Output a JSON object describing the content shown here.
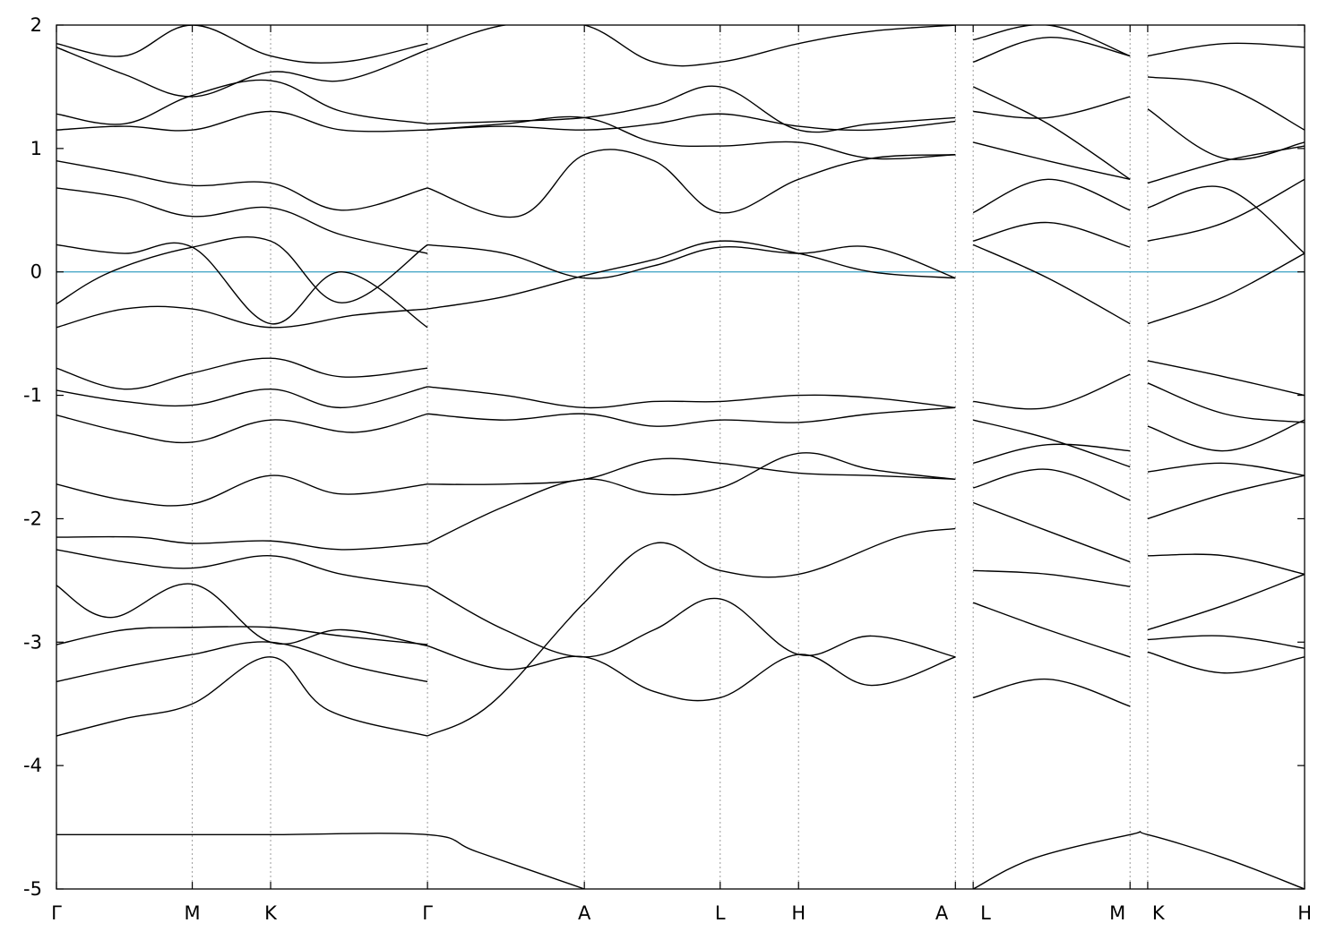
{
  "chart_data": {
    "type": "line",
    "title": "",
    "xlabel": "",
    "ylabel": "",
    "ylim": [
      -5,
      2
    ],
    "yticks": [
      2,
      1,
      0,
      -1,
      -2,
      -3,
      -4,
      -5
    ],
    "ytick_labels": [
      "2",
      "1",
      "0",
      "-1",
      "-2",
      "-3",
      "-4",
      "-5"
    ],
    "fermi_level": 0,
    "fermi_color": "#4aa8c8",
    "band_color": "#000000",
    "grid": "dotted vertical lines at high-symmetry points",
    "high_symmetry_points": [
      {
        "label": "Γ",
        "x": 0.0
      },
      {
        "label": "M",
        "x": 1.0
      },
      {
        "label": "K",
        "x": 1.577
      },
      {
        "label": "Γ",
        "x": 2.732
      },
      {
        "label": "A",
        "x": 3.887
      },
      {
        "label": "L",
        "x": 4.887
      },
      {
        "label": "H",
        "x": 5.464
      },
      {
        "label": "A",
        "x": 6.619
      },
      {
        "label": "L",
        "x": 6.75
      },
      {
        "label": "M",
        "x": 7.905
      },
      {
        "label": "K",
        "x": 8.035
      },
      {
        "label": "H",
        "x": 9.19
      }
    ],
    "segments": [
      {
        "from": "Γ",
        "to": "M",
        "x": [
          0.0,
          1.0
        ]
      },
      {
        "from": "M",
        "to": "K",
        "x": [
          1.0,
          1.577
        ]
      },
      {
        "from": "K",
        "to": "Γ",
        "x": [
          1.577,
          2.732
        ]
      },
      {
        "from": "Γ",
        "to": "A",
        "x": [
          2.732,
          3.887
        ]
      },
      {
        "from": "A",
        "to": "L",
        "x": [
          3.887,
          4.887
        ]
      },
      {
        "from": "L",
        "to": "H",
        "x": [
          4.887,
          5.464
        ]
      },
      {
        "from": "H",
        "to": "A",
        "x": [
          5.464,
          6.619
        ]
      },
      {
        "from": "L",
        "to": "M",
        "x": [
          6.75,
          7.905
        ]
      },
      {
        "from": "K",
        "to": "H",
        "x": [
          8.035,
          9.19
        ]
      }
    ],
    "series": [
      {
        "x": [
          0,
          1,
          1.577,
          2.732,
          3.1,
          3.887
        ],
        "y": [
          -4.56,
          -4.56,
          -4.56,
          -4.56,
          -4.7,
          -5.0
        ]
      },
      {
        "x": [
          6.75,
          7.2,
          7.905,
          8.035,
          8.6,
          9.19
        ],
        "y": [
          -5.0,
          -4.75,
          -4.56,
          -4.56,
          -4.75,
          -5.0
        ]
      },
      {
        "x": [
          0,
          0.5,
          1,
          1.577,
          2.0,
          2.732
        ],
        "y": [
          -3.76,
          -3.62,
          -3.5,
          -3.12,
          -3.55,
          -3.76
        ]
      },
      {
        "x": [
          0,
          0.5,
          1,
          1.577,
          2.2,
          2.732
        ],
        "y": [
          -3.32,
          -3.2,
          -3.1,
          -3.0,
          -3.2,
          -3.32
        ]
      },
      {
        "x": [
          0,
          0.5,
          1,
          1.577,
          2.1,
          2.732
        ],
        "y": [
          -3.02,
          -2.9,
          -2.88,
          -2.88,
          -2.95,
          -3.02
        ]
      },
      {
        "x": [
          0,
          0.4,
          1,
          1.577,
          2.1,
          2.732
        ],
        "y": [
          -2.54,
          -2.8,
          -2.53,
          -3.0,
          -2.9,
          -3.03
        ]
      },
      {
        "x": [
          0,
          0.5,
          1,
          1.577,
          2.1,
          2.732
        ],
        "y": [
          -2.25,
          -2.35,
          -2.4,
          -2.3,
          -2.45,
          -2.55
        ]
      },
      {
        "x": [
          0,
          0.6,
          1,
          1.577,
          2.1,
          2.732
        ],
        "y": [
          -2.15,
          -2.15,
          -2.2,
          -2.18,
          -2.25,
          -2.2
        ]
      },
      {
        "x": [
          0,
          0.5,
          1,
          1.577,
          2.1,
          2.732
        ],
        "y": [
          -1.72,
          -1.85,
          -1.88,
          -1.65,
          -1.8,
          -1.72
        ]
      },
      {
        "x": [
          0,
          0.5,
          1,
          1.577,
          2.2,
          2.732
        ],
        "y": [
          -1.16,
          -1.3,
          -1.38,
          -1.2,
          -1.3,
          -1.15
        ]
      },
      {
        "x": [
          0,
          0.5,
          1,
          1.577,
          2.1,
          2.732
        ],
        "y": [
          -0.96,
          -1.05,
          -1.08,
          -0.95,
          -1.1,
          -0.93
        ]
      },
      {
        "x": [
          0,
          0.5,
          1,
          1.577,
          2.1,
          2.732
        ],
        "y": [
          -0.78,
          -0.95,
          -0.82,
          -0.7,
          -0.85,
          -0.78
        ]
      },
      {
        "x": [
          0,
          0.5,
          1,
          1.577,
          2.2,
          2.732
        ],
        "y": [
          -0.45,
          -0.3,
          -0.3,
          -0.45,
          -0.35,
          -0.3
        ]
      },
      {
        "x": [
          0,
          0.4,
          1,
          1.577,
          2.1,
          2.732
        ],
        "y": [
          -0.26,
          0.0,
          0.2,
          0.25,
          -0.25,
          0.22
        ]
      },
      {
        "x": [
          0,
          0.5,
          1,
          1.577,
          2.1,
          2.732
        ],
        "y": [
          0.22,
          0.15,
          0.2,
          -0.42,
          0.0,
          -0.45
        ]
      },
      {
        "x": [
          0,
          0.5,
          1,
          1.577,
          2.1,
          2.732
        ],
        "y": [
          0.68,
          0.6,
          0.45,
          0.52,
          0.3,
          0.15
        ]
      },
      {
        "x": [
          0,
          0.5,
          1,
          1.577,
          2.1,
          2.732
        ],
        "y": [
          0.9,
          0.8,
          0.7,
          0.72,
          0.5,
          0.68
        ]
      },
      {
        "x": [
          0,
          0.5,
          1,
          1.577,
          2.1,
          2.732
        ],
        "y": [
          1.15,
          1.18,
          1.15,
          1.3,
          1.15,
          1.15
        ]
      },
      {
        "x": [
          0,
          0.5,
          1,
          1.577,
          2.1,
          2.732
        ],
        "y": [
          1.28,
          1.2,
          1.43,
          1.55,
          1.3,
          1.2
        ]
      },
      {
        "x": [
          0,
          0.5,
          1,
          1.577,
          2.1,
          2.732
        ],
        "y": [
          1.82,
          1.6,
          1.42,
          1.62,
          1.55,
          1.8
        ]
      },
      {
        "x": [
          0,
          0.5,
          1,
          1.577,
          2.1,
          2.732
        ],
        "y": [
          1.85,
          1.75,
          2.0,
          1.75,
          1.7,
          1.85
        ]
      },
      {
        "x": [
          2.732,
          3.3,
          3.887,
          4.4,
          4.887,
          5.464,
          6.0,
          6.619
        ],
        "y": [
          -1.72,
          -1.72,
          -1.68,
          -1.52,
          -1.55,
          -1.63,
          -1.65,
          -1.68
        ]
      },
      {
        "x": [
          2.732,
          3.3,
          3.887,
          4.4,
          4.887,
          5.464,
          6.0,
          6.619
        ],
        "y": [
          -2.2,
          -1.9,
          -1.68,
          -1.8,
          -1.75,
          -1.47,
          -1.6,
          -1.68
        ]
      },
      {
        "x": [
          2.732,
          3.3,
          3.887,
          4.4,
          4.887,
          5.464,
          6.0,
          6.619
        ],
        "y": [
          -2.55,
          -2.9,
          -3.12,
          -2.9,
          -2.65,
          -3.1,
          -2.95,
          -3.12
        ]
      },
      {
        "x": [
          2.732,
          3.3,
          3.887,
          4.4,
          4.887,
          5.464,
          6.0,
          6.619
        ],
        "y": [
          -3.03,
          -3.22,
          -3.12,
          -3.4,
          -3.45,
          -3.1,
          -3.35,
          -3.12
        ]
      },
      {
        "x": [
          2.732,
          3.2,
          3.887,
          4.4,
          4.887,
          5.464,
          6.2,
          6.619
        ],
        "y": [
          -3.76,
          -3.5,
          -2.68,
          -2.2,
          -2.42,
          -2.45,
          -2.15,
          -2.08
        ]
      },
      {
        "x": [
          2.732,
          3.3,
          3.887,
          4.4,
          4.887,
          5.464,
          6.0,
          6.619
        ],
        "y": [
          -0.93,
          -1.0,
          -1.1,
          -1.05,
          -1.05,
          -1.0,
          -1.02,
          -1.1
        ]
      },
      {
        "x": [
          2.732,
          3.3,
          3.887,
          4.4,
          4.887,
          5.464,
          6.0,
          6.619
        ],
        "y": [
          -1.15,
          -1.2,
          -1.15,
          -1.25,
          -1.2,
          -1.22,
          -1.15,
          -1.1
        ]
      },
      {
        "x": [
          2.732,
          3.3,
          3.887,
          4.4,
          4.887,
          5.464,
          6.0,
          6.619
        ],
        "y": [
          -0.3,
          -0.2,
          -0.03,
          0.1,
          0.25,
          0.15,
          0.0,
          -0.05
        ]
      },
      {
        "x": [
          2.732,
          3.3,
          3.887,
          4.4,
          4.887,
          5.464,
          6.0,
          6.619
        ],
        "y": [
          0.22,
          0.15,
          -0.05,
          0.05,
          0.2,
          0.15,
          0.2,
          -0.05
        ]
      },
      {
        "x": [
          2.732,
          3.4,
          3.887,
          4.4,
          4.887,
          5.464,
          6.0,
          6.619
        ],
        "y": [
          0.68,
          0.45,
          0.95,
          0.9,
          0.48,
          0.75,
          0.92,
          0.95
        ]
      },
      {
        "x": [
          2.732,
          3.3,
          3.887,
          4.4,
          4.887,
          5.464,
          6.0,
          6.619
        ],
        "y": [
          1.15,
          1.2,
          1.25,
          1.05,
          1.02,
          1.05,
          0.92,
          0.95
        ]
      },
      {
        "x": [
          2.732,
          3.3,
          3.887,
          4.4,
          4.887,
          5.464,
          6.0,
          6.619
        ],
        "y": [
          1.2,
          1.22,
          1.25,
          1.35,
          1.5,
          1.15,
          1.2,
          1.25
        ]
      },
      {
        "x": [
          2.732,
          3.3,
          3.887,
          4.4,
          4.887,
          5.464,
          6.0,
          6.619
        ],
        "y": [
          1.15,
          1.18,
          1.15,
          1.2,
          1.28,
          1.18,
          1.15,
          1.22
        ]
      },
      {
        "x": [
          2.732,
          3.3,
          3.887,
          4.4,
          4.887,
          5.464,
          6.0,
          6.619
        ],
        "y": [
          1.8,
          2.0,
          2.0,
          1.7,
          1.7,
          1.85,
          1.95,
          2.0
        ]
      },
      {
        "x": [
          6.75,
          7.3,
          7.905
        ],
        "y": [
          -3.45,
          -3.3,
          -3.52
        ]
      },
      {
        "x": [
          6.75,
          7.3,
          7.905
        ],
        "y": [
          -2.68,
          -2.9,
          -3.12
        ]
      },
      {
        "x": [
          6.75,
          7.3,
          7.905
        ],
        "y": [
          -2.42,
          -2.45,
          -2.55
        ]
      },
      {
        "x": [
          6.75,
          7.3,
          7.905
        ],
        "y": [
          -1.87,
          -2.1,
          -2.35
        ]
      },
      {
        "x": [
          6.75,
          7.3,
          7.905
        ],
        "y": [
          -1.75,
          -1.6,
          -1.85
        ]
      },
      {
        "x": [
          6.75,
          7.3,
          7.905
        ],
        "y": [
          -1.55,
          -1.4,
          -1.45
        ]
      },
      {
        "x": [
          6.75,
          7.3,
          7.905
        ],
        "y": [
          -1.2,
          -1.35,
          -1.58
        ]
      },
      {
        "x": [
          6.75,
          7.3,
          7.905
        ],
        "y": [
          -1.05,
          -1.1,
          -0.83
        ]
      },
      {
        "x": [
          6.75,
          7.3,
          7.905
        ],
        "y": [
          0.22,
          -0.05,
          -0.42
        ]
      },
      {
        "x": [
          6.75,
          7.3,
          7.905
        ],
        "y": [
          0.25,
          0.4,
          0.2
        ]
      },
      {
        "x": [
          6.75,
          7.3,
          7.905
        ],
        "y": [
          0.48,
          0.75,
          0.5
        ]
      },
      {
        "x": [
          6.75,
          7.3,
          7.905
        ],
        "y": [
          1.05,
          0.9,
          0.75
        ]
      },
      {
        "x": [
          6.75,
          7.3,
          7.905
        ],
        "y": [
          1.3,
          1.25,
          1.42
        ]
      },
      {
        "x": [
          6.75,
          7.3,
          7.905
        ],
        "y": [
          1.5,
          1.2,
          0.75
        ]
      },
      {
        "x": [
          6.75,
          7.3,
          7.905
        ],
        "y": [
          1.7,
          1.9,
          1.75
        ]
      },
      {
        "x": [
          6.75,
          7.3,
          7.905
        ],
        "y": [
          1.88,
          2.0,
          1.75
        ]
      },
      {
        "x": [
          8.035,
          8.6,
          9.19
        ],
        "y": [
          -3.08,
          -3.25,
          -3.12
        ]
      },
      {
        "x": [
          8.035,
          8.6,
          9.19
        ],
        "y": [
          -2.98,
          -2.95,
          -3.05
        ]
      },
      {
        "x": [
          8.035,
          8.6,
          9.19
        ],
        "y": [
          -2.9,
          -2.7,
          -2.45
        ]
      },
      {
        "x": [
          8.035,
          8.6,
          9.19
        ],
        "y": [
          -2.3,
          -2.3,
          -2.45
        ]
      },
      {
        "x": [
          8.035,
          8.6,
          9.19
        ],
        "y": [
          -2.0,
          -1.8,
          -1.65
        ]
      },
      {
        "x": [
          8.035,
          8.6,
          9.19
        ],
        "y": [
          -1.62,
          -1.55,
          -1.65
        ]
      },
      {
        "x": [
          8.035,
          8.6,
          9.19
        ],
        "y": [
          -1.25,
          -1.45,
          -1.2
        ]
      },
      {
        "x": [
          8.035,
          8.6,
          9.19
        ],
        "y": [
          -0.9,
          -1.15,
          -1.22
        ]
      },
      {
        "x": [
          8.035,
          8.6,
          9.19
        ],
        "y": [
          -0.72,
          -0.85,
          -1.0
        ]
      },
      {
        "x": [
          8.035,
          8.6,
          9.19
        ],
        "y": [
          -0.42,
          -0.2,
          0.15
        ]
      },
      {
        "x": [
          8.035,
          8.6,
          9.19
        ],
        "y": [
          0.25,
          0.4,
          0.75
        ]
      },
      {
        "x": [
          8.035,
          8.6,
          9.19
        ],
        "y": [
          0.52,
          0.68,
          0.15
        ]
      },
      {
        "x": [
          8.035,
          8.6,
          9.19
        ],
        "y": [
          0.72,
          0.9,
          1.02
        ]
      },
      {
        "x": [
          8.035,
          8.6,
          9.19
        ],
        "y": [
          1.32,
          0.92,
          1.05
        ]
      },
      {
        "x": [
          8.035,
          8.6,
          9.19
        ],
        "y": [
          1.58,
          1.5,
          1.15
        ]
      },
      {
        "x": [
          8.035,
          8.6,
          9.19
        ],
        "y": [
          1.75,
          1.85,
          1.82
        ]
      }
    ]
  }
}
